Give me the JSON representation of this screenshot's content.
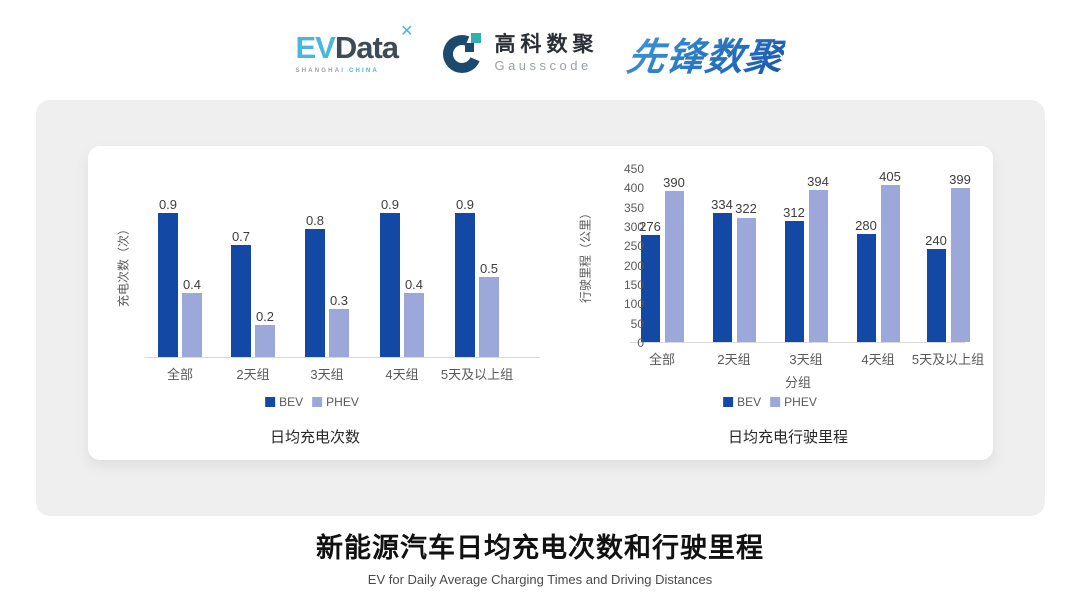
{
  "header": {
    "evdata": {
      "ev": "EV",
      "data": "Data",
      "sub_left": "SHANGHAI",
      "sub_right": "CHINA"
    },
    "gausscode": {
      "cn": "高科数聚",
      "en": "Gausscode"
    },
    "xianfeng": {
      "text": "先锋数聚"
    }
  },
  "footer": {
    "title": "新能源汽车日均充电次数和行驶里程",
    "subtitle": "EV for Daily Average Charging Times and Driving Distances"
  },
  "colors": {
    "bev_bar": "#1348A5",
    "phev_bar": "#9CA7DA",
    "axis_line": "#d9d9d9",
    "evdata_blue": "#49B7D9",
    "evdata_dark": "#3D4A5A",
    "gauss_navy": "#1C4A6E",
    "gauss_teal": "#2FB3A9"
  },
  "chart_data": [
    {
      "type": "bar",
      "title": "日均充电次数",
      "ylabel": "充电次数（次）",
      "xlabel": "",
      "categories": [
        "全部",
        "2天组",
        "3天组",
        "4天组",
        "5天及以上组"
      ],
      "series": [
        {
          "name": "BEV",
          "values": [
            0.9,
            0.7,
            0.8,
            0.9,
            0.9
          ]
        },
        {
          "name": "PHEV",
          "values": [
            0.4,
            0.2,
            0.3,
            0.4,
            0.5
          ]
        }
      ],
      "ylim": [
        0,
        1
      ],
      "yticks": [],
      "grid": false,
      "legend": [
        "BEV",
        "PHEV"
      ],
      "legend_position": "bottom",
      "data_labels": true
    },
    {
      "type": "bar",
      "title": "日均充电行驶里程",
      "ylabel": "行驶里程（公里）",
      "xlabel": "分组",
      "categories": [
        "全部",
        "2天组",
        "3天组",
        "4天组",
        "5天及以上组"
      ],
      "series": [
        {
          "name": "BEV",
          "values": [
            276,
            334,
            312,
            280,
            240
          ]
        },
        {
          "name": "PHEV",
          "values": [
            390,
            322,
            394,
            405,
            399
          ]
        }
      ],
      "ylim": [
        0,
        450
      ],
      "yticks": [
        0,
        50,
        100,
        150,
        200,
        250,
        300,
        350,
        400,
        450
      ],
      "grid": false,
      "legend": [
        "BEV",
        "PHEV"
      ],
      "legend_position": "bottom",
      "data_labels": true
    }
  ]
}
